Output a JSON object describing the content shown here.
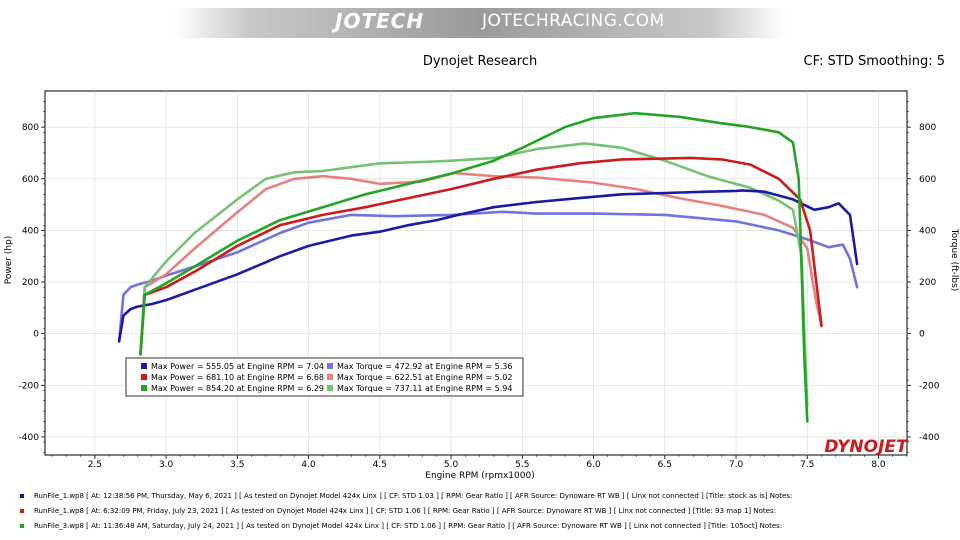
{
  "header": {
    "logo": "JOTECH",
    "site": "JOTECHRACING.COM",
    "title": "Dynojet Research",
    "cf_smoothing": "CF: STD Smoothing: 5"
  },
  "colors": {
    "run1_power": "#1a1aa8",
    "run1_torque": "#7272e0",
    "run2_power": "#cc1b1b",
    "run2_torque": "#e88080",
    "run3_power": "#22a522",
    "run3_torque": "#74c274"
  },
  "chart_data": {
    "type": "line",
    "xlabel": "Engine RPM (rpmx1000)",
    "ylabel_left": "Power (hp)",
    "ylabel_right": "Torque (ft-lbs)",
    "xlim": [
      2.15,
      8.2
    ],
    "ylim": [
      -470,
      940
    ],
    "x_ticks": [
      "2.5",
      "3.0",
      "3.5",
      "4.0",
      "4.5",
      "5.0",
      "5.5",
      "6.0",
      "6.5",
      "7.0",
      "7.5",
      "8.0"
    ],
    "y_ticks": [
      "-400",
      "-200",
      "0",
      "200",
      "400",
      "600",
      "800"
    ],
    "grid": true,
    "legend": [
      "Max Power = 555.05 at Engine RPM = 7.04",
      "Max Power = 681.10 at Engine RPM = 6.68",
      "Max Power = 854.20 at Engine RPM = 6.29",
      "Max Torque = 472.92 at Engine RPM = 5.36",
      "Max Torque = 622.51 at Engine RPM = 5.02",
      "Max Torque = 737.11 at Engine RPM = 5.94"
    ],
    "series": [
      {
        "key": "run1_power",
        "x": [
          2.67,
          2.7,
          2.75,
          2.8,
          2.9,
          3.0,
          3.2,
          3.5,
          3.8,
          4.0,
          4.3,
          4.5,
          4.7,
          4.9,
          5.05,
          5.3,
          5.6,
          5.9,
          6.2,
          6.5,
          6.8,
          7.0,
          7.04,
          7.2,
          7.4,
          7.55,
          7.65,
          7.72,
          7.8,
          7.85
        ],
        "y": [
          -30,
          70,
          95,
          105,
          115,
          130,
          170,
          230,
          300,
          340,
          380,
          395,
          420,
          440,
          460,
          490,
          510,
          525,
          540,
          545,
          550,
          553,
          555,
          550,
          520,
          480,
          490,
          505,
          460,
          270
        ]
      },
      {
        "key": "run1_torque",
        "x": [
          2.67,
          2.7,
          2.75,
          2.8,
          2.9,
          3.0,
          3.2,
          3.5,
          3.8,
          4.0,
          4.3,
          4.6,
          5.0,
          5.36,
          5.6,
          6.0,
          6.5,
          7.0,
          7.3,
          7.5,
          7.65,
          7.75,
          7.8,
          7.85
        ],
        "y": [
          -30,
          150,
          180,
          190,
          205,
          225,
          260,
          315,
          390,
          430,
          460,
          455,
          460,
          472,
          465,
          465,
          460,
          435,
          400,
          365,
          335,
          345,
          290,
          180
        ]
      },
      {
        "key": "run2_power",
        "x": [
          2.82,
          2.85,
          3.0,
          3.2,
          3.5,
          3.8,
          4.1,
          4.4,
          4.7,
          5.0,
          5.3,
          5.6,
          5.9,
          6.2,
          6.5,
          6.68,
          6.9,
          7.1,
          7.3,
          7.45,
          7.52,
          7.57,
          7.6
        ],
        "y": [
          -80,
          150,
          180,
          240,
          340,
          420,
          460,
          490,
          525,
          560,
          600,
          635,
          660,
          675,
          678,
          681,
          675,
          655,
          600,
          520,
          400,
          170,
          30
        ]
      },
      {
        "key": "run2_torque",
        "x": [
          2.82,
          2.85,
          3.0,
          3.2,
          3.5,
          3.7,
          3.9,
          4.1,
          4.3,
          4.5,
          4.8,
          5.02,
          5.3,
          5.6,
          6.0,
          6.3,
          6.6,
          6.9,
          7.2,
          7.4,
          7.5,
          7.56,
          7.6
        ],
        "y": [
          -80,
          180,
          230,
          330,
          470,
          560,
          600,
          610,
          600,
          580,
          590,
          622,
          610,
          605,
          585,
          560,
          525,
          495,
          460,
          410,
          330,
          130,
          30
        ]
      },
      {
        "key": "run3_power",
        "x": [
          2.82,
          2.85,
          3.0,
          3.2,
          3.5,
          3.8,
          4.1,
          4.4,
          4.7,
          5.0,
          5.3,
          5.5,
          5.8,
          6.0,
          6.29,
          6.6,
          6.9,
          7.1,
          7.3,
          7.4,
          7.44,
          7.46,
          7.48,
          7.5
        ],
        "y": [
          -80,
          150,
          195,
          260,
          360,
          440,
          490,
          540,
          580,
          620,
          670,
          720,
          800,
          835,
          854,
          840,
          815,
          800,
          780,
          740,
          600,
          250,
          -100,
          -340
        ]
      },
      {
        "key": "run3_torque",
        "x": [
          2.82,
          2.85,
          3.0,
          3.2,
          3.5,
          3.7,
          3.9,
          4.1,
          4.3,
          4.5,
          4.8,
          5.0,
          5.3,
          5.6,
          5.94,
          6.2,
          6.5,
          6.8,
          7.1,
          7.3,
          7.4,
          7.46,
          7.48,
          7.5
        ],
        "y": [
          -80,
          180,
          280,
          390,
          520,
          600,
          625,
          630,
          645,
          660,
          665,
          670,
          680,
          715,
          737,
          720,
          670,
          610,
          565,
          515,
          480,
          300,
          0,
          -280
        ]
      }
    ]
  },
  "runfiles": [
    {
      "color": "#1a1aa8",
      "text": "RunFile_1.wp8  [ At: 12:38:56 PM, Thursday, May 6, 2021 ]  [ As tested on Dynojet Model 424x Linx ]  [ CF: STD 1.03 ]  [ RPM: Gear Ratio ]  [ AFR Source: Dynoware RT WB ]  [ Linx not connected ]  [Title: stock as is]   Notes:"
    },
    {
      "color": "#cc1b1b",
      "text": "RunFile_1.wp8  [ At: 6:32:09 PM, Friday, July 23, 2021 ]  [ As tested on Dynojet Model 424x Linx ]  [ CF: STD 1.06 ]  [ RPM: Gear Ratio ]  [ AFR Source: Dynoware RT WB ]  [ Linx not connected ]  [Title: 93 map 1]   Notes:"
    },
    {
      "color": "#22a522",
      "text": "RunFile_3.wp8  [ At: 11:36:48 AM, Saturday, July 24, 2021 ]  [ As tested on Dynojet Model 424x Linx ]  [ CF: STD 1.06 ]  [ RPM: Gear Ratio ]  [ AFR Source: Dynoware RT WB ]  [ Linx not connected ]  [Title: 105oct]   Notes:"
    }
  ],
  "watermark": "DYNOJET"
}
